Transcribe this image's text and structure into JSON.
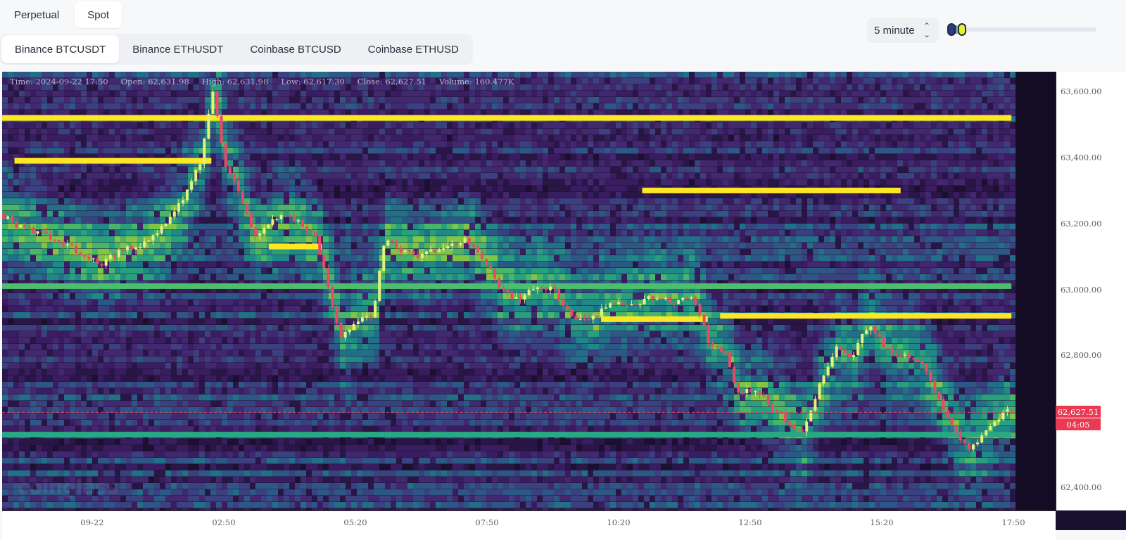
{
  "mode_tabs": [
    {
      "label": "Perpetual",
      "active": false
    },
    {
      "label": "Spot",
      "active": true
    }
  ],
  "pair_tabs": [
    {
      "label": "Binance BTCUSDT",
      "active": true
    },
    {
      "label": "Binance ETHUSDT",
      "active": false
    },
    {
      "label": "Coinbase BTCUSD",
      "active": false
    },
    {
      "label": "Coinbase ETHUSD",
      "active": false
    }
  ],
  "interval": {
    "value": "5 minute"
  },
  "ohlc": {
    "time": "Time: 2024-09-22 17:50",
    "open": "Open: 62,631.98",
    "high": "High: 62,631.98",
    "low": "Low: 62,617.30",
    "close": "Close: 62,627.51",
    "volume": "Volume: 160.477K"
  },
  "watermark": "coinglass",
  "last_price": {
    "price": "62,627.51",
    "countdown": "04:05",
    "value": 62627.51
  },
  "colors": {
    "up": "#e4f27a",
    "down": "#e84a66",
    "liquidity_max": "#fde725",
    "background": "#180f2b"
  },
  "chart_data": {
    "type": "heatmap",
    "title": "",
    "xlabel": "",
    "ylabel": "",
    "x_ticks": [
      "09-22",
      "02:50",
      "05:20",
      "07:50",
      "10:20",
      "12:50",
      "15:20",
      "17:50"
    ],
    "y_ticks": [
      "63,600.00",
      "63,400.00",
      "63,200.00",
      "63,000.00",
      "62,800.00",
      "62,400.00"
    ],
    "y_tick_values": [
      63600,
      63400,
      63200,
      63000,
      62800,
      62400
    ],
    "ylim": [
      62330,
      63660
    ],
    "x_range_hours": [
      0,
      24.7
    ],
    "price_path": [
      [
        0,
        63230
      ],
      [
        0.5,
        63190
      ],
      [
        1.0,
        63170
      ],
      [
        1.5,
        63140
      ],
      [
        2.0,
        63110
      ],
      [
        2.5,
        63080
      ],
      [
        3.0,
        63120
      ],
      [
        3.5,
        63140
      ],
      [
        3.9,
        63180
      ],
      [
        4.4,
        63260
      ],
      [
        4.9,
        63380
      ],
      [
        5.2,
        63600
      ],
      [
        5.5,
        63380
      ],
      [
        5.9,
        63280
      ],
      [
        6.2,
        63160
      ],
      [
        6.6,
        63200
      ],
      [
        7.0,
        63230
      ],
      [
        7.4,
        63190
      ],
      [
        7.7,
        63160
      ],
      [
        8.0,
        63020
      ],
      [
        8.3,
        62850
      ],
      [
        8.7,
        62910
      ],
      [
        9.1,
        62920
      ],
      [
        9.4,
        63150
      ],
      [
        9.8,
        63120
      ],
      [
        10.2,
        63100
      ],
      [
        10.6,
        63120
      ],
      [
        11.0,
        63130
      ],
      [
        11.4,
        63150
      ],
      [
        11.8,
        63090
      ],
      [
        12.2,
        63010
      ],
      [
        12.6,
        62970
      ],
      [
        13.0,
        63000
      ],
      [
        13.5,
        63000
      ],
      [
        13.9,
        62920
      ],
      [
        14.3,
        62900
      ],
      [
        14.7,
        62940
      ],
      [
        15.1,
        62960
      ],
      [
        15.6,
        62960
      ],
      [
        16.0,
        62980
      ],
      [
        16.5,
        62960
      ],
      [
        16.9,
        62980
      ],
      [
        17.3,
        62840
      ],
      [
        17.7,
        62810
      ],
      [
        18.0,
        62680
      ],
      [
        18.4,
        62700
      ],
      [
        18.8,
        62650
      ],
      [
        19.2,
        62600
      ],
      [
        19.6,
        62560
      ],
      [
        20.0,
        62720
      ],
      [
        20.4,
        62820
      ],
      [
        20.8,
        62800
      ],
      [
        21.2,
        62900
      ],
      [
        21.6,
        62820
      ],
      [
        22.0,
        62800
      ],
      [
        22.4,
        62790
      ],
      [
        22.8,
        62700
      ],
      [
        23.2,
        62580
      ],
      [
        23.6,
        62520
      ],
      [
        24.0,
        62560
      ],
      [
        24.3,
        62610
      ],
      [
        24.6,
        62630
      ]
    ],
    "liquidity_levels": [
      {
        "price": 63520,
        "x_start": 0,
        "x_end": 24.6,
        "intensity": 1.0
      },
      {
        "price": 63390,
        "x_start": 0.3,
        "x_end": 5.1,
        "intensity": 1.0
      },
      {
        "price": 63300,
        "x_start": 15.6,
        "x_end": 21.9,
        "intensity": 1.0
      },
      {
        "price": 63130,
        "x_start": 6.5,
        "x_end": 7.8,
        "intensity": 1.0
      },
      {
        "price": 63010,
        "x_start": 0,
        "x_end": 24.6,
        "intensity": 0.75
      },
      {
        "price": 62910,
        "x_start": 14.6,
        "x_end": 17.2,
        "intensity": 1.0
      },
      {
        "price": 62920,
        "x_start": 17.5,
        "x_end": 24.6,
        "intensity": 1.0
      },
      {
        "price": 62560,
        "x_start": 0,
        "x_end": 24.6,
        "intensity": 0.7
      }
    ]
  }
}
